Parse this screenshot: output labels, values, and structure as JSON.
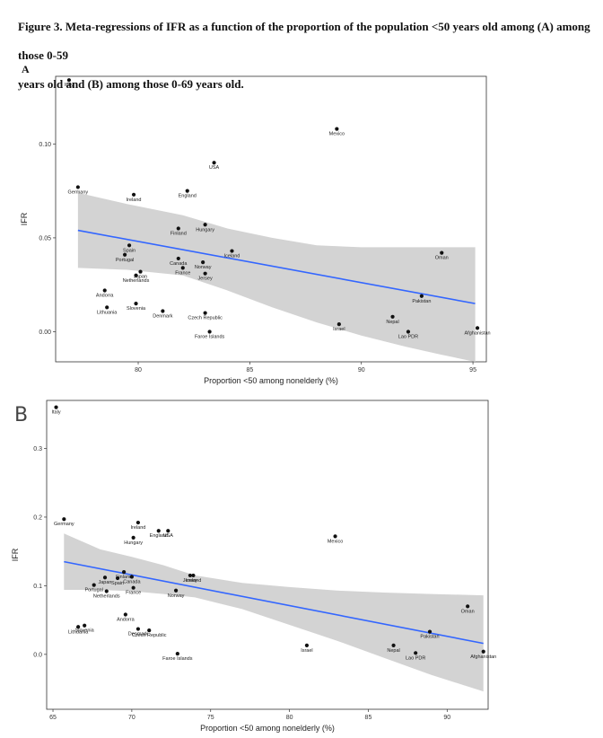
{
  "caption": {
    "line1": "Figure 3. Meta-regressions of IFR as a function of the proportion of the population <50 years old among (A) among those 0-59",
    "line2": "years old and (B) among those 0-69 years old."
  },
  "panel_labels": {
    "a": "A",
    "b": "B"
  },
  "colors": {
    "regression_line": "#3366ff",
    "confidence_band": "#d3d3d3",
    "points": "#111111",
    "frame": "#333333"
  },
  "chart_data": [
    {
      "type": "scatter",
      "xlabel": "Proportion <50 among nonelderly (%)",
      "ylabel": "IFR",
      "xticks": [
        80,
        85,
        90,
        95
      ],
      "yticks": [
        0.0,
        0.05,
        0.1
      ],
      "ytick_labels": [
        "0.00",
        "0.05",
        "0.10"
      ],
      "xlim": [
        76.3,
        95.6
      ],
      "ylim": [
        -0.016,
        0.136
      ],
      "grid": false,
      "points": [
        {
          "label": "Italy",
          "x": 76.9,
          "y": 0.134
        },
        {
          "label": "Mexico",
          "x": 88.9,
          "y": 0.108
        },
        {
          "label": "USA",
          "x": 83.4,
          "y": 0.09
        },
        {
          "label": "Germany",
          "x": 77.3,
          "y": 0.077
        },
        {
          "label": "England",
          "x": 82.2,
          "y": 0.075
        },
        {
          "label": "Ireland",
          "x": 79.8,
          "y": 0.073
        },
        {
          "label": "Hungary",
          "x": 83.0,
          "y": 0.057
        },
        {
          "label": "Finland",
          "x": 81.8,
          "y": 0.055
        },
        {
          "label": "Iceland",
          "x": 84.2,
          "y": 0.043
        },
        {
          "label": "Oman",
          "x": 93.6,
          "y": 0.042
        },
        {
          "label": "Spain",
          "x": 79.6,
          "y": 0.046
        },
        {
          "label": "Portugal",
          "x": 79.4,
          "y": 0.041
        },
        {
          "label": "Canada",
          "x": 81.8,
          "y": 0.039
        },
        {
          "label": "Norway",
          "x": 82.9,
          "y": 0.037
        },
        {
          "label": "France",
          "x": 82.0,
          "y": 0.034
        },
        {
          "label": "Japan",
          "x": 80.1,
          "y": 0.032
        },
        {
          "label": "Jersey",
          "x": 83.0,
          "y": 0.031
        },
        {
          "label": "Netherlands",
          "x": 79.9,
          "y": 0.03
        },
        {
          "label": "Andorra",
          "x": 78.5,
          "y": 0.022
        },
        {
          "label": "Pakistan",
          "x": 92.7,
          "y": 0.019
        },
        {
          "label": "Slovenia",
          "x": 79.9,
          "y": 0.015
        },
        {
          "label": "Lithuania",
          "x": 78.6,
          "y": 0.013
        },
        {
          "label": "Denmark",
          "x": 81.1,
          "y": 0.011
        },
        {
          "label": "Czech Republic",
          "x": 83.0,
          "y": 0.01
        },
        {
          "label": "Nepal",
          "x": 91.4,
          "y": 0.008
        },
        {
          "label": "Israel",
          "x": 89.0,
          "y": 0.004
        },
        {
          "label": "Afghanistan",
          "x": 95.2,
          "y": 0.002
        },
        {
          "label": "Lao PDR",
          "x": 92.1,
          "y": 0.0
        },
        {
          "label": "Faroe Islands",
          "x": 83.2,
          "y": 0.0
        }
      ],
      "fit_line": {
        "x": [
          77.3,
          95.1
        ],
        "y": [
          0.054,
          0.015
        ]
      },
      "confidence_band": {
        "x": [
          77.3,
          79.5,
          82,
          84,
          86,
          88,
          90,
          92,
          93.5,
          95.1
        ],
        "upper": [
          0.074,
          0.068,
          0.062,
          0.055,
          0.05,
          0.046,
          0.045,
          0.045,
          0.045,
          0.045
        ],
        "lower": [
          0.034,
          0.033,
          0.03,
          0.022,
          0.013,
          0.005,
          -0.002,
          -0.008,
          -0.012,
          -0.016
        ]
      }
    },
    {
      "type": "scatter",
      "xlabel": "Proportion <50 among nonelderly (%)",
      "ylabel": "IFR",
      "xticks": [
        65,
        70,
        75,
        80,
        85,
        90
      ],
      "yticks": [
        0.0,
        0.1,
        0.2,
        0.3
      ],
      "ytick_labels": [
        "0.0",
        "0.1",
        "0.2",
        "0.3"
      ],
      "xlim": [
        64.6,
        92.6
      ],
      "ylim": [
        -0.08,
        0.37
      ],
      "grid": false,
      "points": [
        {
          "label": "Italy",
          "x": 65.2,
          "y": 0.36
        },
        {
          "label": "Germany",
          "x": 65.7,
          "y": 0.197
        },
        {
          "label": "Ireland",
          "x": 70.4,
          "y": 0.192
        },
        {
          "label": "USA",
          "x": 72.3,
          "y": 0.18
        },
        {
          "label": "England",
          "x": 71.7,
          "y": 0.18
        },
        {
          "label": "Hungary",
          "x": 70.1,
          "y": 0.17
        },
        {
          "label": "Mexico",
          "x": 82.9,
          "y": 0.172
        },
        {
          "label": "Jersey",
          "x": 73.7,
          "y": 0.115
        },
        {
          "label": "Iceland",
          "x": 73.9,
          "y": 0.115
        },
        {
          "label": "Finland",
          "x": 69.5,
          "y": 0.12
        },
        {
          "label": "Japan",
          "x": 68.3,
          "y": 0.112
        },
        {
          "label": "Canada",
          "x": 70.0,
          "y": 0.113
        },
        {
          "label": "Spain",
          "x": 69.1,
          "y": 0.111
        },
        {
          "label": "Portugal",
          "x": 67.6,
          "y": 0.101
        },
        {
          "label": "France",
          "x": 70.1,
          "y": 0.097
        },
        {
          "label": "Norway",
          "x": 72.8,
          "y": 0.093
        },
        {
          "label": "Netherlands",
          "x": 68.4,
          "y": 0.092
        },
        {
          "label": "Oman",
          "x": 91.3,
          "y": 0.07
        },
        {
          "label": "Andorra",
          "x": 69.6,
          "y": 0.058
        },
        {
          "label": "Slovenia",
          "x": 67.0,
          "y": 0.042
        },
        {
          "label": "Lithuania",
          "x": 66.6,
          "y": 0.04
        },
        {
          "label": "Denmark",
          "x": 70.4,
          "y": 0.037
        },
        {
          "label": "Czech Republic",
          "x": 71.1,
          "y": 0.035
        },
        {
          "label": "Pakistan",
          "x": 88.9,
          "y": 0.033
        },
        {
          "label": "Israel",
          "x": 81.1,
          "y": 0.013
        },
        {
          "label": "Nepal",
          "x": 86.6,
          "y": 0.013
        },
        {
          "label": "Afghanistan",
          "x": 92.3,
          "y": 0.004
        },
        {
          "label": "Lao PDR",
          "x": 88.0,
          "y": 0.002
        },
        {
          "label": "Faroe Islands",
          "x": 72.9,
          "y": 0.001
        }
      ],
      "fit_line": {
        "x": [
          65.7,
          92.3
        ],
        "y": [
          0.135,
          0.016
        ]
      },
      "confidence_band": {
        "x": [
          65.7,
          68,
          70,
          72,
          74,
          77,
          80,
          83,
          86,
          89,
          92.3
        ],
        "upper": [
          0.176,
          0.153,
          0.142,
          0.13,
          0.115,
          0.104,
          0.098,
          0.093,
          0.09,
          0.088,
          0.086
        ],
        "lower": [
          0.094,
          0.094,
          0.092,
          0.088,
          0.083,
          0.066,
          0.043,
          0.02,
          -0.005,
          -0.03,
          -0.054
        ]
      }
    }
  ]
}
